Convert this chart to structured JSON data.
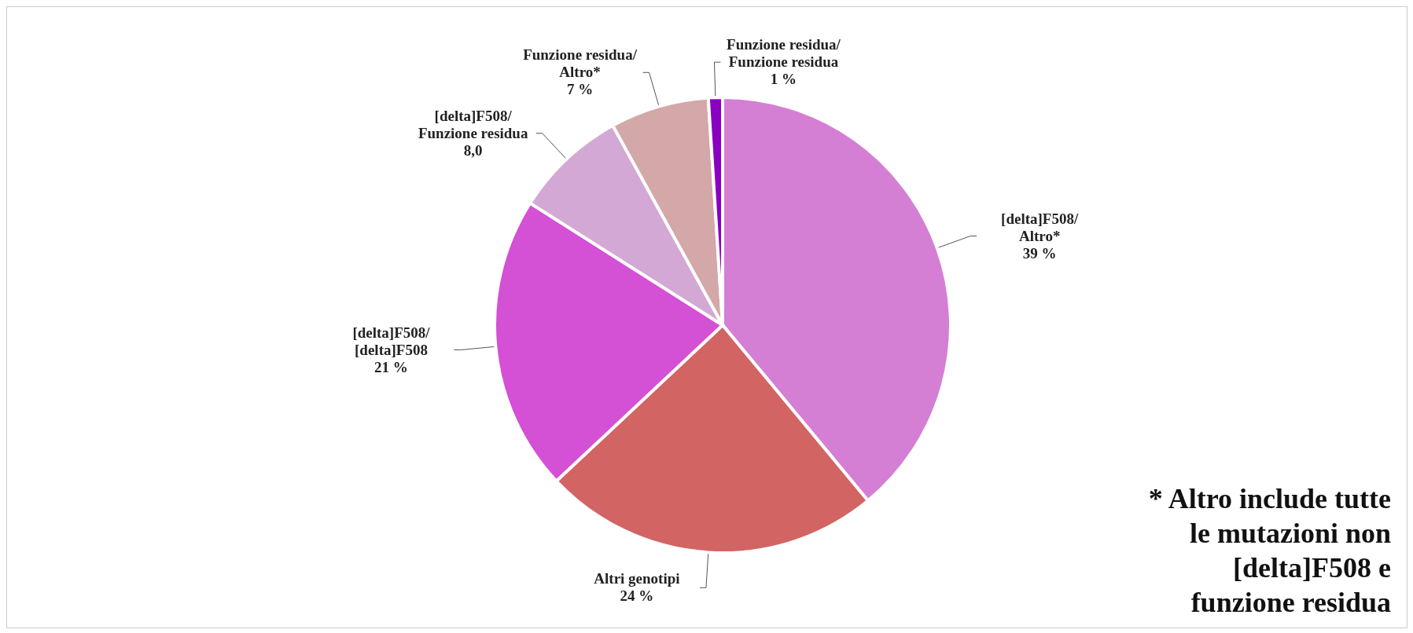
{
  "chart_data": {
    "type": "pie",
    "categories": [
      "[delta]F508/Altro*",
      "Altri genotipi",
      "[delta]F508/[delta]F508",
      "[delta]F508/Funzione residua",
      "Funzione residua/Altro*",
      "Funzione residua/Funzione residua"
    ],
    "values": [
      39,
      24,
      21,
      8,
      7,
      1
    ],
    "value_labels": [
      "39 %",
      "24 %",
      "21 %",
      "8,0",
      "7 %",
      "1 %"
    ],
    "colors": [
      "#d47fd4",
      "#d26464",
      "#d450d4",
      "#d4a8d4",
      "#d4a8a8",
      "#8a00c0"
    ],
    "annotations": [
      "* Altro include tutte le mutazioni non [delta]F508 e funzione residua"
    ],
    "legend": false
  }
}
